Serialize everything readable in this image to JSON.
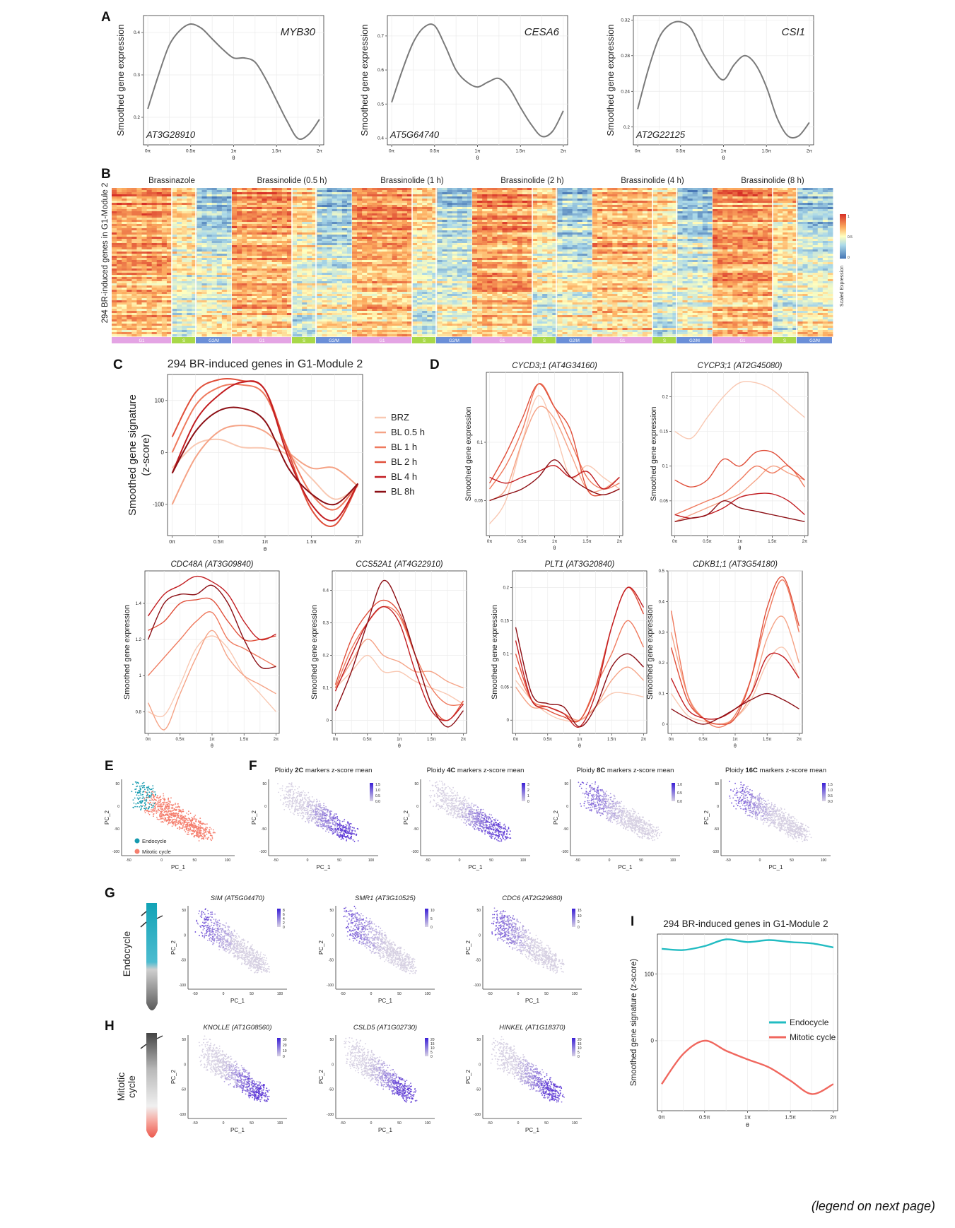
{
  "figure": {
    "footer": "(legend on next page)",
    "theta_ticks": [
      "0π",
      "0.5π",
      "1π",
      "1.5π",
      "2π"
    ],
    "theta_label": "θ"
  },
  "panel_A": {
    "letter": "A",
    "ylabel": "Smoothed gene expression",
    "colors": {
      "line": "#7a7a7a"
    },
    "charts": [
      {
        "gene": "MYB30",
        "locus": "AT3G28910",
        "yticks": [
          0.2,
          0.3,
          0.4
        ],
        "ylim": [
          0.135,
          0.44
        ],
        "x": [
          0,
          0.125,
          0.25,
          0.375,
          0.5,
          0.625,
          0.75,
          0.875,
          1.0,
          1.125,
          1.25,
          1.375,
          1.5,
          1.625,
          1.75,
          1.875,
          2.0
        ],
        "y": [
          0.22,
          0.3,
          0.37,
          0.405,
          0.42,
          0.41,
          0.385,
          0.36,
          0.34,
          0.34,
          0.33,
          0.29,
          0.24,
          0.19,
          0.15,
          0.16,
          0.195
        ]
      },
      {
        "gene": "CESA6",
        "locus": "AT5G64740",
        "yticks": [
          0.4,
          0.5,
          0.6,
          0.7
        ],
        "ylim": [
          0.38,
          0.76
        ],
        "x": [
          0,
          0.125,
          0.25,
          0.375,
          0.5,
          0.625,
          0.75,
          0.875,
          1.0,
          1.125,
          1.25,
          1.375,
          1.5,
          1.625,
          1.75,
          1.875,
          2.0
        ],
        "y": [
          0.505,
          0.6,
          0.68,
          0.725,
          0.73,
          0.67,
          0.6,
          0.565,
          0.55,
          0.565,
          0.575,
          0.545,
          0.49,
          0.44,
          0.405,
          0.42,
          0.48
        ]
      },
      {
        "gene": "CSI1",
        "locus": "AT2G22125",
        "yticks": [
          0.2,
          0.24,
          0.28,
          0.32
        ],
        "ylim": [
          0.18,
          0.325
        ],
        "x": [
          0,
          0.125,
          0.25,
          0.375,
          0.5,
          0.625,
          0.75,
          0.875,
          1.0,
          1.125,
          1.25,
          1.375,
          1.5,
          1.625,
          1.75,
          1.875,
          2.0
        ],
        "y": [
          0.22,
          0.265,
          0.3,
          0.315,
          0.318,
          0.31,
          0.285,
          0.265,
          0.253,
          0.27,
          0.28,
          0.27,
          0.245,
          0.21,
          0.19,
          0.19,
          0.205
        ]
      }
    ]
  },
  "panel_B": {
    "letter": "B",
    "ylabel": "294 BR-induced genes in G1-Module 2",
    "scale_label": "Scaled Expression",
    "scale_ticks": [
      "1",
      "0.5",
      "0"
    ],
    "conditions": [
      "Brassinazole",
      "Brassinolide (0.5 h)",
      "Brassinolide (1 h)",
      "Brassinolide (2 h)",
      "Brassinolide (4 h)",
      "Brassinolide (8 h)"
    ],
    "phases": [
      "G1",
      "S",
      "G2/M"
    ],
    "phase_fractions": [
      0.5,
      0.2,
      0.3
    ],
    "colors": {
      "G1": "#e4a4e4",
      "S": "#a8d848",
      "G2/M": "#6b8fd8",
      "high": "#d73027",
      "mid": "#ffffbf",
      "low": "#4575b4"
    }
  },
  "panel_C": {
    "letter": "C",
    "title": "294 BR-induced genes in G1-Module 2",
    "ylabel_1": "Smoothed gene signature",
    "ylabel_2": "(z-score)",
    "yticks": [
      -100,
      0,
      100
    ],
    "ylim": [
      -160,
      150
    ],
    "legend": [
      "BRZ",
      "BL 0.5 h",
      "BL 1 h",
      "BL 2 h",
      "BL 4 h",
      "BL 8h"
    ],
    "colors": [
      "#f9c8b2",
      "#f5a386",
      "#ef7a5e",
      "#e04f3a",
      "#c21d21",
      "#8c0f15"
    ],
    "x": [
      0,
      0.25,
      0.5,
      0.75,
      1.0,
      1.25,
      1.5,
      1.75,
      2.0
    ],
    "series": [
      [
        -30,
        15,
        25,
        10,
        8,
        -5,
        -50,
        -90,
        -65
      ],
      [
        -100,
        -10,
        40,
        52,
        40,
        0,
        -30,
        -30,
        -65
      ],
      [
        0,
        90,
        125,
        130,
        110,
        5,
        -80,
        -110,
        -60
      ],
      [
        30,
        115,
        140,
        138,
        120,
        0,
        -110,
        -140,
        -60
      ],
      [
        -40,
        60,
        110,
        135,
        120,
        -10,
        -100,
        -130,
        -60
      ],
      [
        -40,
        40,
        80,
        85,
        60,
        -30,
        -80,
        -100,
        -60
      ]
    ]
  },
  "panel_D": {
    "letter": "D",
    "ylabel": "Smoothed gene expression",
    "charts": [
      {
        "gene": "CYCD3;1",
        "locus": "AT4G34160",
        "yticks": [
          0.05,
          0.1
        ],
        "ylim": [
          0.02,
          0.16
        ],
        "x": [
          0,
          0.25,
          0.5,
          0.75,
          1.0,
          1.25,
          1.5,
          1.75,
          2.0
        ],
        "series": [
          [
            0.03,
            0.05,
            0.1,
            0.14,
            0.11,
            0.07,
            0.08,
            0.07,
            0.06
          ],
          [
            0.05,
            0.06,
            0.1,
            0.13,
            0.12,
            0.09,
            0.06,
            0.06,
            0.07
          ],
          [
            0.06,
            0.08,
            0.11,
            0.15,
            0.13,
            0.1,
            0.07,
            0.06,
            0.065
          ],
          [
            0.065,
            0.09,
            0.12,
            0.15,
            0.13,
            0.11,
            0.06,
            0.055,
            0.06
          ],
          [
            0.07,
            0.065,
            0.07,
            0.075,
            0.08,
            0.07,
            0.075,
            0.06,
            0.07
          ],
          [
            0.05,
            0.055,
            0.06,
            0.07,
            0.085,
            0.07,
            0.06,
            0.055,
            0.06
          ]
        ]
      },
      {
        "gene": "CYCP3;1",
        "locus": "AT2G45080",
        "yticks": [
          0.05,
          0.1,
          0.15,
          0.2
        ],
        "ylim": [
          0.0,
          0.235
        ],
        "x": [
          0,
          0.25,
          0.5,
          0.75,
          1.0,
          1.25,
          1.5,
          1.75,
          2.0
        ],
        "series": [
          [
            0.15,
            0.14,
            0.17,
            0.2,
            0.22,
            0.22,
            0.21,
            0.19,
            0.17
          ],
          [
            0.02,
            0.03,
            0.04,
            0.05,
            0.06,
            0.08,
            0.1,
            0.09,
            0.08
          ],
          [
            0.03,
            0.04,
            0.05,
            0.06,
            0.08,
            0.1,
            0.09,
            0.1,
            0.07
          ],
          [
            0.08,
            0.07,
            0.08,
            0.11,
            0.1,
            0.12,
            0.12,
            0.1,
            0.08
          ],
          [
            0.03,
            0.025,
            0.03,
            0.04,
            0.055,
            0.06,
            0.06,
            0.05,
            0.03
          ],
          [
            0.02,
            0.025,
            0.03,
            0.05,
            0.04,
            0.035,
            0.03,
            0.025,
            0.02
          ]
        ]
      },
      {
        "gene": "CDC48A",
        "locus": "AT3G09840",
        "yticks": [
          0.8,
          1.0,
          1.2,
          1.4
        ],
        "ylim": [
          0.68,
          1.58
        ],
        "x": [
          0,
          0.25,
          0.5,
          0.75,
          1.0,
          1.25,
          1.5,
          1.75,
          2.0
        ],
        "series": [
          [
            0.8,
            0.78,
            0.95,
            1.15,
            1.22,
            1.15,
            1.0,
            0.9,
            0.8
          ],
          [
            0.85,
            0.7,
            0.9,
            1.1,
            1.25,
            1.1,
            1.0,
            0.95,
            0.9
          ],
          [
            1.0,
            1.1,
            1.2,
            1.3,
            1.35,
            1.2,
            1.15,
            1.1,
            1.05
          ],
          [
            1.25,
            1.3,
            1.4,
            1.42,
            1.42,
            1.3,
            1.2,
            1.2,
            1.22
          ],
          [
            1.33,
            1.45,
            1.5,
            1.55,
            1.52,
            1.45,
            1.3,
            1.2,
            1.23
          ],
          [
            1.2,
            1.4,
            1.45,
            1.45,
            1.5,
            1.4,
            1.2,
            1.05,
            1.05
          ]
        ]
      },
      {
        "gene": "CCS52A1",
        "locus": "AT4G22910",
        "yticks": [
          0.0,
          0.1,
          0.2,
          0.3,
          0.4
        ],
        "ylim": [
          -0.04,
          0.46
        ],
        "x": [
          0,
          0.25,
          0.5,
          0.75,
          1.0,
          1.25,
          1.5,
          1.75,
          2.0
        ],
        "series": [
          [
            0.1,
            0.15,
            0.2,
            0.15,
            0.15,
            0.12,
            0.1,
            0.08,
            0.05
          ],
          [
            0.1,
            0.18,
            0.25,
            0.2,
            0.18,
            0.15,
            0.15,
            0.12,
            0.1
          ],
          [
            0.1,
            0.22,
            0.3,
            0.35,
            0.32,
            0.2,
            0.1,
            0.05,
            0.05
          ],
          [
            0.11,
            0.25,
            0.33,
            0.37,
            0.33,
            0.2,
            0.05,
            0.0,
            0.06
          ],
          [
            0.09,
            0.2,
            0.3,
            0.35,
            0.3,
            0.15,
            0.03,
            0.0,
            0.05
          ],
          [
            0.03,
            0.15,
            0.3,
            0.43,
            0.35,
            0.2,
            0.05,
            -0.02,
            0.03
          ]
        ]
      },
      {
        "gene": "PLT1",
        "locus": "AT3G20840",
        "yticks": [
          0.0,
          0.05,
          0.1,
          0.15,
          0.2
        ],
        "ylim": [
          -0.02,
          0.225
        ],
        "x": [
          0,
          0.25,
          0.5,
          0.75,
          1.0,
          1.25,
          1.5,
          1.75,
          2.0
        ],
        "series": [
          [
            0.06,
            0.03,
            0.01,
            0.0,
            0.0,
            0.02,
            0.04,
            0.04,
            0.035
          ],
          [
            0.05,
            0.02,
            0.02,
            0.01,
            0.0,
            0.02,
            0.06,
            0.08,
            0.06
          ],
          [
            0.08,
            0.03,
            0.02,
            0.01,
            0.0,
            0.05,
            0.1,
            0.15,
            0.11
          ],
          [
            0.1,
            0.03,
            0.015,
            0.005,
            0.0,
            0.05,
            0.14,
            0.2,
            0.16
          ],
          [
            0.12,
            0.03,
            0.02,
            0.01,
            -0.01,
            0.04,
            0.14,
            0.2,
            0.17
          ],
          [
            0.14,
            0.04,
            0.025,
            0.02,
            -0.01,
            0.02,
            0.08,
            0.1,
            0.08
          ]
        ]
      },
      {
        "gene": "CDKB1;1",
        "locus": "AT3G54180",
        "yticks": [
          0.0,
          0.1,
          0.2,
          0.3,
          0.4,
          0.5
        ],
        "ylim": [
          -0.03,
          0.5
        ],
        "x": [
          0,
          0.25,
          0.5,
          0.75,
          1.0,
          1.25,
          1.5,
          1.75,
          2.0
        ],
        "series": [
          [
            0.1,
            0.03,
            0.01,
            0.0,
            0.02,
            0.08,
            0.2,
            0.25,
            0.15
          ],
          [
            0.3,
            0.1,
            0.02,
            0.0,
            0.02,
            0.1,
            0.28,
            0.35,
            0.2
          ],
          [
            0.37,
            0.1,
            0.02,
            -0.01,
            0.03,
            0.15,
            0.35,
            0.47,
            0.3
          ],
          [
            0.25,
            0.08,
            0.02,
            0.0,
            0.02,
            0.15,
            0.38,
            0.48,
            0.32
          ],
          [
            0.15,
            0.05,
            0.02,
            0.02,
            0.05,
            0.1,
            0.22,
            0.22,
            0.15
          ],
          [
            0.05,
            0.02,
            0.0,
            0.02,
            0.05,
            0.08,
            0.1,
            0.08,
            0.05
          ]
        ]
      }
    ]
  },
  "panel_E": {
    "letter": "E",
    "xlabel": "PC_1",
    "ylabel": "PC_2",
    "xticks": [
      "-50",
      "0",
      "50",
      "100"
    ],
    "yticks": [
      "50",
      "0",
      "-50",
      "-100"
    ],
    "legend": [
      "Endocycle",
      "Mitotic cycle"
    ],
    "colors": {
      "Endocycle": "#159aaf",
      "Mitotic cycle": "#f57f6e"
    }
  },
  "panel_F": {
    "letter": "F",
    "xlabel": "PC_1",
    "ylabel": "PC_2",
    "charts": [
      {
        "pre": "Ploidy ",
        "bold": "2C",
        "post": " markers z-score mean",
        "scale": [
          "1.5",
          "1.0",
          "0.5",
          "0.0"
        ],
        "focus": "low"
      },
      {
        "pre": "Ploidy ",
        "bold": "4C",
        "post": " markers z-score mean",
        "scale": [
          "3",
          "2",
          "1",
          "0"
        ],
        "focus": "low"
      },
      {
        "pre": "Ploidy ",
        "bold": "8C",
        "post": " markers z-score mean",
        "scale": [
          "1.0",
          "0.5",
          "0.0"
        ],
        "focus": "top"
      },
      {
        "pre": "Ploidy ",
        "bold": "16C",
        "post": " markers z-score mean",
        "scale": [
          "1.5",
          "1.0",
          "0.5",
          "0.0"
        ],
        "focus": "top"
      }
    ]
  },
  "panel_G": {
    "letter": "G",
    "side_label": "Endocycle",
    "charts": [
      {
        "gene": "SIM",
        "locus": "AT5G04470",
        "scale": [
          "8",
          "6",
          "4",
          "2",
          "0"
        ]
      },
      {
        "gene": "SMR1",
        "locus": "AT3G10525",
        "scale": [
          "10",
          "5",
          "0"
        ]
      },
      {
        "gene": "CDC6",
        "locus": "AT2G29680",
        "scale": [
          "15",
          "10",
          "5",
          "0"
        ]
      }
    ]
  },
  "panel_H": {
    "letter": "H",
    "side_label_1": "Mitotic",
    "side_label_2": "cycle",
    "charts": [
      {
        "gene": "KNOLLE",
        "locus": "AT1G08560",
        "scale": [
          "30",
          "20",
          "10",
          "0"
        ]
      },
      {
        "gene": "CSLD5",
        "locus": "AT1G02730",
        "scale": [
          "20",
          "15",
          "10",
          "5",
          "0"
        ]
      },
      {
        "gene": "HINKEL",
        "locus": "AT1G18370",
        "scale": [
          "20",
          "15",
          "10",
          "5",
          "0"
        ]
      }
    ]
  },
  "panel_I": {
    "letter": "I",
    "title": "294 BR-induced genes in G1-Module 2",
    "ylabel": "Smoothed gene signature (z-score)",
    "yticks": [
      0,
      100
    ],
    "ylim": [
      -105,
      160
    ],
    "legend": [
      "Endocycle",
      "Mitotic cycle"
    ],
    "colors": {
      "Endocycle": "#22bcc2",
      "Mitotic cycle": "#f0675e"
    },
    "x": [
      0,
      0.25,
      0.5,
      0.75,
      1.0,
      1.25,
      1.5,
      1.75,
      2.0
    ],
    "series": [
      [
        138,
        136,
        142,
        152,
        148,
        151,
        148,
        146,
        140
      ],
      [
        -65,
        -20,
        0,
        -15,
        -28,
        -40,
        -60,
        -80,
        -65
      ]
    ]
  },
  "chart_data": [
    {
      "type": "line",
      "panel": "A",
      "x": [
        0,
        0.25,
        0.5,
        0.75,
        1.0,
        1.25,
        1.5,
        1.75,
        2.0
      ],
      "series": [
        {
          "name": "MYB30",
          "values": [
            0.22,
            0.37,
            0.42,
            0.385,
            0.34,
            0.33,
            0.24,
            0.15,
            0.195
          ]
        },
        {
          "name": "CESA6",
          "values": [
            0.505,
            0.68,
            0.73,
            0.6,
            0.55,
            0.575,
            0.49,
            0.405,
            0.48
          ]
        },
        {
          "name": "CSI1",
          "values": [
            0.22,
            0.3,
            0.318,
            0.285,
            0.253,
            0.28,
            0.245,
            0.19,
            0.205
          ]
        }
      ]
    },
    {
      "type": "line",
      "panel": "C",
      "x": [
        0,
        0.25,
        0.5,
        0.75,
        1.0,
        1.25,
        1.5,
        1.75,
        2.0
      ],
      "ylim": [
        -160,
        150
      ]
    },
    {
      "type": "line",
      "panel": "I",
      "x": [
        0,
        0.25,
        0.5,
        0.75,
        1.0,
        1.25,
        1.5,
        1.75,
        2.0
      ],
      "series": [
        {
          "name": "Endocycle",
          "values": [
            138,
            136,
            142,
            152,
            148,
            151,
            148,
            146,
            140
          ]
        },
        {
          "name": "Mitotic cycle",
          "values": [
            -65,
            -20,
            0,
            -15,
            -28,
            -40,
            -60,
            -80,
            -65
          ]
        }
      ]
    }
  ]
}
